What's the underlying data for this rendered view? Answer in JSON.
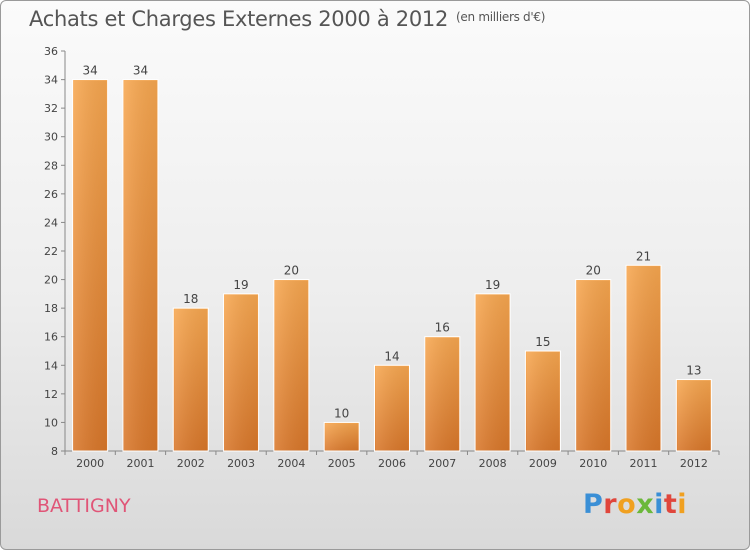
{
  "header": {
    "title": "Achats et Charges Externes 2000 à 2012",
    "unit": "(en milliers d'€)"
  },
  "footer": {
    "commune": "BATTIGNY",
    "brand": "Proxiti"
  },
  "colors": {
    "bar_light": "#f7a750",
    "bar_dark": "#d9772a",
    "axis": "#888888",
    "text": "#444444",
    "commune": "#e05577"
  },
  "chart_data": {
    "type": "bar",
    "categories": [
      "2000",
      "2001",
      "2002",
      "2003",
      "2004",
      "2005",
      "2006",
      "2007",
      "2008",
      "2009",
      "2010",
      "2011",
      "2012"
    ],
    "values": [
      34,
      34,
      18,
      19,
      20,
      10,
      14,
      16,
      19,
      15,
      20,
      21,
      13
    ],
    "title": "Achats et Charges Externes 2000 à 2012",
    "ylim": [
      8,
      36
    ],
    "yticks": [
      8,
      10,
      12,
      14,
      16,
      18,
      20,
      22,
      24,
      26,
      28,
      30,
      32,
      34,
      36
    ],
    "grid": false,
    "data_labels": true
  }
}
